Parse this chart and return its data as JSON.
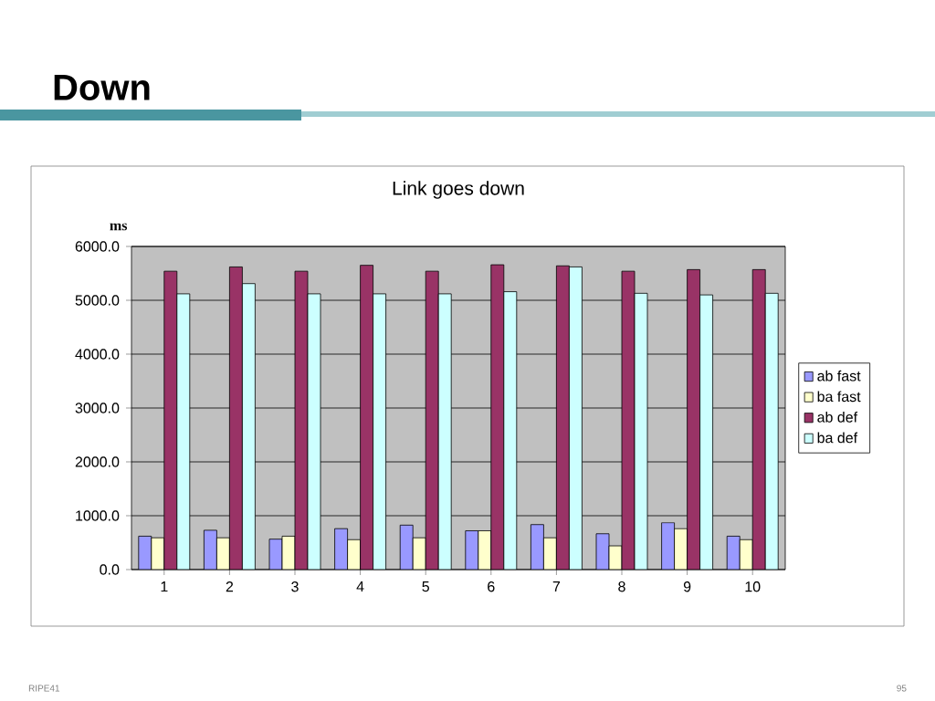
{
  "chart_data": {
    "type": "bar",
    "title": "Down",
    "subtitle": "Link goes down",
    "ylabel": "ms",
    "categories": [
      "1",
      "2",
      "3",
      "4",
      "5",
      "6",
      "7",
      "8",
      "9",
      "10"
    ],
    "series": [
      {
        "name": "ab fast",
        "color": "#9999ff",
        "values": [
          620,
          730,
          565,
          760,
          825,
          720,
          835,
          665,
          870,
          620
        ]
      },
      {
        "name": "ba fast",
        "color": "#ffffcc",
        "values": [
          590,
          590,
          620,
          555,
          590,
          720,
          590,
          440,
          760,
          555
        ]
      },
      {
        "name": "ab def",
        "color": "#993366",
        "values": [
          5540,
          5620,
          5540,
          5650,
          5540,
          5660,
          5640,
          5540,
          5570,
          5570
        ]
      },
      {
        "name": "ba def",
        "color": "#ccffff",
        "values": [
          5120,
          5310,
          5120,
          5120,
          5120,
          5160,
          5620,
          5130,
          5100,
          5130
        ]
      }
    ],
    "ylim": [
      0,
      6000
    ],
    "yticks": [
      {
        "value": 0,
        "label": "0.0"
      },
      {
        "value": 1000,
        "label": "1000.0"
      },
      {
        "value": 2000,
        "label": "2000.0"
      },
      {
        "value": 3000,
        "label": "3000.0"
      },
      {
        "value": 4000,
        "label": "4000.0"
      },
      {
        "value": 5000,
        "label": "5000.0"
      },
      {
        "value": 6000,
        "label": "6000.0"
      }
    ],
    "grid": "y",
    "legend": "right",
    "annotations": [
      "RIPE41",
      "95"
    ]
  }
}
